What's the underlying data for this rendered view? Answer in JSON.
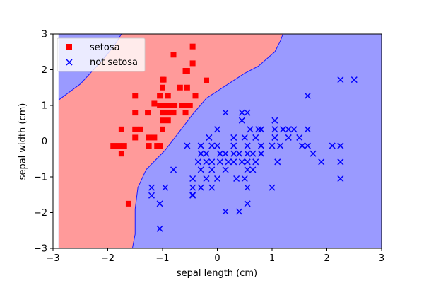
{
  "chart_data": {
    "type": "scatter",
    "xlabel": "sepal length (cm)",
    "ylabel": "sepal width (cm)",
    "xlim": [
      -3,
      3
    ],
    "ylim": [
      -3,
      3
    ],
    "xticks": [
      -3,
      -2,
      -1,
      0,
      1,
      2,
      3
    ],
    "yticks": [
      -3,
      -2,
      -1,
      0,
      1,
      2,
      3
    ],
    "xtick_labels": [
      "−3",
      "−2",
      "−1",
      "0",
      "1",
      "2",
      "3"
    ],
    "ytick_labels": [
      "−3",
      "−2",
      "−1",
      "0",
      "1",
      "2",
      "3"
    ],
    "grid": false,
    "legend_position": "top-left",
    "decision_regions": {
      "classes": [
        "setosa",
        "not setosa"
      ],
      "colors": [
        "#ff9a9a",
        "#9a9aff"
      ],
      "boundary_points": [
        [
          -2.9,
          1.15
        ],
        [
          -2.5,
          1.6
        ],
        [
          -2.2,
          2.1
        ],
        [
          -2.0,
          2.45
        ],
        [
          -1.85,
          2.75
        ],
        [
          -1.75,
          3.0
        ],
        [
          1.2,
          3.0
        ],
        [
          1.15,
          2.8
        ],
        [
          1.05,
          2.5
        ],
        [
          0.75,
          2.1
        ],
        [
          0.5,
          1.9
        ],
        [
          0.2,
          1.6
        ],
        [
          -0.2,
          1.2
        ],
        [
          -0.45,
          0.75
        ],
        [
          -0.7,
          0.25
        ],
        [
          -0.95,
          -0.25
        ],
        [
          -1.3,
          -0.8
        ],
        [
          -1.45,
          -1.3
        ],
        [
          -1.5,
          -1.9
        ],
        [
          -1.5,
          -2.6
        ],
        [
          -1.55,
          -3.0
        ]
      ]
    },
    "series": [
      {
        "name": "setosa",
        "marker": "square",
        "color": "#ff0000",
        "points": [
          [
            -0.45,
            2.65
          ],
          [
            -0.8,
            2.42
          ],
          [
            -0.45,
            2.18
          ],
          [
            -0.55,
            1.97
          ],
          [
            -0.58,
            1.97
          ],
          [
            -1.0,
            1.72
          ],
          [
            -0.98,
            1.72
          ],
          [
            -1.0,
            1.5
          ],
          [
            -0.68,
            1.5
          ],
          [
            -0.55,
            1.5
          ],
          [
            -1.5,
            1.27
          ],
          [
            -1.05,
            1.27
          ],
          [
            -0.9,
            1.27
          ],
          [
            -0.4,
            1.27
          ],
          [
            -0.2,
            1.7
          ],
          [
            -1.15,
            1.05
          ],
          [
            -1.05,
            1.0
          ],
          [
            -1.0,
            1.0
          ],
          [
            -0.95,
            1.0
          ],
          [
            -0.9,
            1.0
          ],
          [
            -0.85,
            1.0
          ],
          [
            -0.78,
            1.0
          ],
          [
            -0.65,
            1.0
          ],
          [
            -0.6,
            1.0
          ],
          [
            -0.55,
            1.0
          ],
          [
            -0.5,
            1.0
          ],
          [
            -1.5,
            0.8
          ],
          [
            -1.27,
            0.8
          ],
          [
            -1.0,
            0.8
          ],
          [
            -0.9,
            0.8
          ],
          [
            -0.8,
            0.8
          ],
          [
            -0.58,
            0.8
          ],
          [
            -1.0,
            0.58
          ],
          [
            -0.9,
            0.58
          ],
          [
            -1.75,
            0.33
          ],
          [
            -1.5,
            0.33
          ],
          [
            -1.4,
            0.33
          ],
          [
            -1.0,
            0.33
          ],
          [
            -1.25,
            0.1
          ],
          [
            -1.15,
            0.1
          ],
          [
            -1.5,
            0.1
          ],
          [
            -1.9,
            -0.13
          ],
          [
            -1.8,
            -0.13
          ],
          [
            -1.7,
            -0.13
          ],
          [
            -1.25,
            -0.13
          ],
          [
            -1.1,
            -0.13
          ],
          [
            -1.05,
            -0.13
          ],
          [
            -1.75,
            -0.35
          ],
          [
            -1.62,
            -1.75
          ]
        ]
      },
      {
        "name": "not setosa",
        "marker": "x",
        "color": "#0000ff",
        "points": [
          [
            2.25,
            1.72
          ],
          [
            2.5,
            1.72
          ],
          [
            1.65,
            1.27
          ],
          [
            0.45,
            0.8
          ],
          [
            0.55,
            0.8
          ],
          [
            0.15,
            0.8
          ],
          [
            1.05,
            0.58
          ],
          [
            0.45,
            0.58
          ],
          [
            1.05,
            0.33
          ],
          [
            0.0,
            0.33
          ],
          [
            0.6,
            0.33
          ],
          [
            0.75,
            0.33
          ],
          [
            0.8,
            0.33
          ],
          [
            1.2,
            0.33
          ],
          [
            1.3,
            0.33
          ],
          [
            1.4,
            0.33
          ],
          [
            1.65,
            0.33
          ],
          [
            -0.15,
            0.1
          ],
          [
            0.3,
            0.1
          ],
          [
            0.5,
            0.1
          ],
          [
            0.7,
            0.1
          ],
          [
            1.05,
            0.1
          ],
          [
            1.3,
            0.1
          ],
          [
            1.5,
            0.1
          ],
          [
            -0.55,
            -0.13
          ],
          [
            -0.3,
            -0.13
          ],
          [
            -0.1,
            -0.13
          ],
          [
            0.0,
            -0.13
          ],
          [
            0.3,
            -0.13
          ],
          [
            0.55,
            -0.13
          ],
          [
            0.8,
            -0.13
          ],
          [
            1.0,
            -0.13
          ],
          [
            1.15,
            -0.13
          ],
          [
            1.55,
            -0.13
          ],
          [
            1.65,
            -0.13
          ],
          [
            2.1,
            -0.13
          ],
          [
            2.25,
            -0.13
          ],
          [
            -0.3,
            -0.35
          ],
          [
            -0.2,
            -0.35
          ],
          [
            0.05,
            -0.35
          ],
          [
            0.15,
            -0.35
          ],
          [
            0.3,
            -0.35
          ],
          [
            0.4,
            -0.35
          ],
          [
            0.55,
            -0.35
          ],
          [
            0.65,
            -0.35
          ],
          [
            0.8,
            -0.35
          ],
          [
            1.75,
            -0.35
          ],
          [
            -0.35,
            -0.58
          ],
          [
            -0.2,
            -0.58
          ],
          [
            -0.1,
            -0.58
          ],
          [
            0.05,
            -0.58
          ],
          [
            0.2,
            -0.58
          ],
          [
            0.3,
            -0.58
          ],
          [
            0.45,
            -0.58
          ],
          [
            0.55,
            -0.58
          ],
          [
            0.7,
            -0.58
          ],
          [
            1.1,
            -0.58
          ],
          [
            1.9,
            -0.58
          ],
          [
            2.25,
            -0.58
          ],
          [
            -0.8,
            -0.8
          ],
          [
            -0.3,
            -0.8
          ],
          [
            -0.1,
            -0.8
          ],
          [
            0.15,
            -0.8
          ],
          [
            0.55,
            -0.8
          ],
          [
            0.65,
            -0.8
          ],
          [
            -0.45,
            -1.05
          ],
          [
            -0.2,
            -1.05
          ],
          [
            0.0,
            -1.05
          ],
          [
            0.35,
            -1.05
          ],
          [
            0.5,
            -1.05
          ],
          [
            2.25,
            -1.05
          ],
          [
            -1.2,
            -1.3
          ],
          [
            -0.95,
            -1.3
          ],
          [
            -0.45,
            -1.3
          ],
          [
            -0.3,
            -1.3
          ],
          [
            -0.1,
            -1.3
          ],
          [
            0.55,
            -1.3
          ],
          [
            1.0,
            -1.3
          ],
          [
            -1.2,
            -1.52
          ],
          [
            -0.45,
            -1.52
          ],
          [
            -0.45,
            -1.5
          ],
          [
            -1.05,
            -1.75
          ],
          [
            0.55,
            -1.75
          ],
          [
            0.15,
            -1.97
          ],
          [
            0.4,
            -1.97
          ],
          [
            -1.05,
            -2.45
          ]
        ]
      }
    ]
  }
}
